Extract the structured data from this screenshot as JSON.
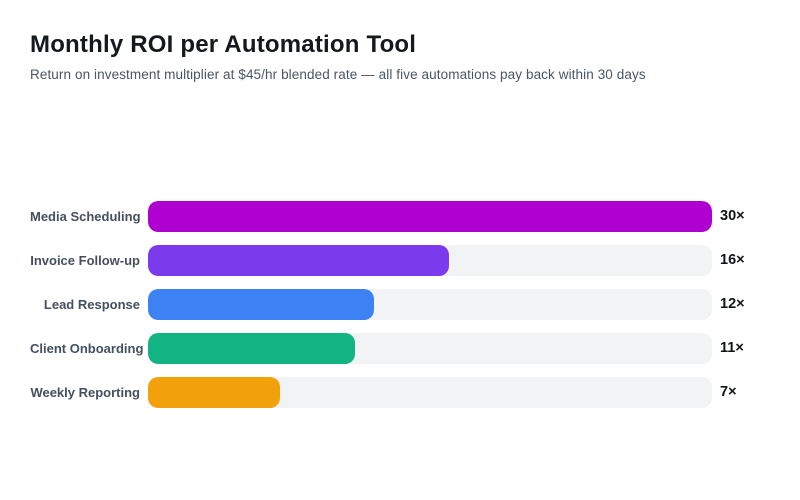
{
  "header": {
    "title": "Monthly ROI per Automation Tool",
    "subtitle": "Return on investment multiplier at $45/hr blended rate — all five automations pay back within 30 days"
  },
  "chart_data": {
    "type": "bar",
    "orientation": "horizontal",
    "title": "Monthly ROI per Automation Tool",
    "subtitle": "Return on investment multiplier at $45/hr blended rate — all five automations pay back within 30 days",
    "categories": [
      "Media Scheduling",
      "Invoice Follow-up",
      "Lead Response",
      "Client Onboarding",
      "Weekly Reporting"
    ],
    "values": [
      30,
      16,
      12,
      11,
      7
    ],
    "value_labels": [
      "30×",
      "16×",
      "12×",
      "11×",
      "7×"
    ],
    "value_suffix": "×",
    "bar_colors": [
      "#af00d2",
      "#7c3aed",
      "#3d82f4",
      "#12b483",
      "#f2a10b"
    ],
    "track_color": "#f2f3f5",
    "xlim": [
      0,
      30
    ],
    "xlabel": "",
    "ylabel": "",
    "grid": false,
    "legend": false
  },
  "colors": {
    "background": "#ffffff",
    "title_text": "#15181e",
    "subtitle_text": "#4a5565",
    "category_text": "#44505f",
    "value_text": "#101317",
    "track": "#f2f3f5"
  }
}
